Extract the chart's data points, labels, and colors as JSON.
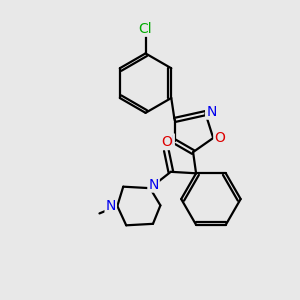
{
  "bg_color": "#e8e8e8",
  "bond_color": "#000000",
  "bond_width": 1.6,
  "atom_colors": {
    "N": "#0000ee",
    "O": "#dd0000",
    "Cl": "#00aa00",
    "C": "#000000"
  },
  "fig_size": [
    3.0,
    3.0
  ],
  "dpi": 100,
  "xlim": [
    0,
    10
  ],
  "ylim": [
    0,
    10
  ]
}
